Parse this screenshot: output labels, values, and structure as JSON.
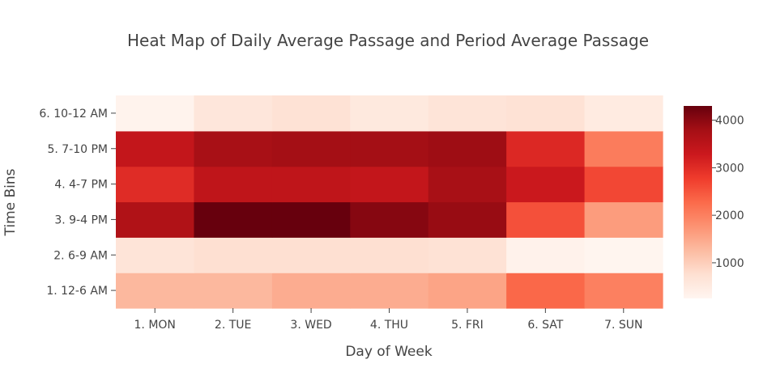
{
  "chart_data": {
    "type": "heatmap",
    "title": "Heat Map of Daily Average Passage and Period Average Passage",
    "xlabel": "Day of Week",
    "ylabel": "Time Bins",
    "x_categories": [
      "1. MON",
      "2. TUE",
      "3. WED",
      "4. THU",
      "5. FRI",
      "6. SAT",
      "7. SUN"
    ],
    "y_categories": [
      "1. 12-6 AM",
      "2. 6-9 AM",
      "3. 9-4 PM",
      "4. 4-7 PM",
      "5. 7-10 PM",
      "6. 10-12 AM"
    ],
    "z": [
      [
        1300,
        1300,
        1450,
        1450,
        1550,
        2300,
        2000
      ],
      [
        650,
        750,
        750,
        750,
        700,
        330,
        260
      ],
      [
        3650,
        4300,
        4300,
        4050,
        3900,
        2550,
        1650
      ],
      [
        3000,
        3450,
        3450,
        3400,
        3750,
        3300,
        2650
      ],
      [
        3400,
        3750,
        3800,
        3800,
        3850,
        3050,
        2050
      ],
      [
        300,
        600,
        700,
        550,
        650,
        700,
        500
      ]
    ],
    "colorscale": "Reds",
    "zrange": [
      250,
      4300
    ],
    "colorbar_ticks": [
      1000,
      2000,
      3000,
      4000
    ]
  }
}
